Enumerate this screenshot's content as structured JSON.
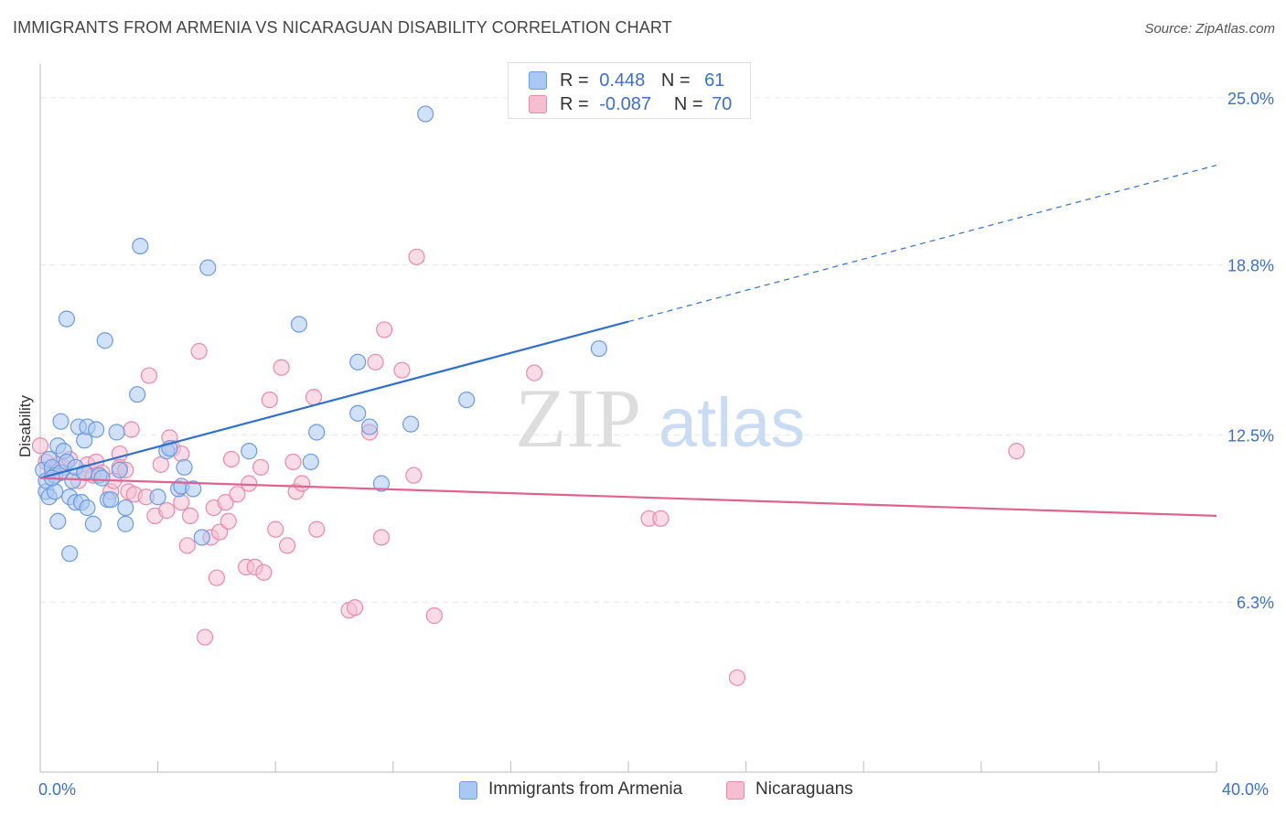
{
  "title": "IMMIGRANTS FROM ARMENIA VS NICARAGUAN DISABILITY CORRELATION CHART",
  "source": "Source: ZipAtlas.com",
  "watermark": {
    "zip": "ZIP",
    "atlas": "atlas"
  },
  "colors": {
    "blue_fill": "#a9c8f3",
    "blue_stroke": "#6d9be0",
    "blue_line": "#2f6fcf",
    "pink_fill": "#f6bfd1",
    "pink_stroke": "#e98aab",
    "pink_line": "#e0628f",
    "tick_label": "#3b6fd0",
    "grid": "#e6e6e6"
  },
  "legend_top": [
    {
      "r_label": "R =",
      "r_value": "0.448",
      "n_label": "N =",
      "n_value": "61"
    },
    {
      "r_label": "R =",
      "r_value": "-0.087",
      "n_label": "N =",
      "n_value": "70"
    }
  ],
  "chart_data": {
    "type": "scatter",
    "title": "IMMIGRANTS FROM ARMENIA VS NICARAGUAN DISABILITY CORRELATION CHART",
    "xlabel": "",
    "ylabel": "Disability",
    "xlim": [
      0,
      40
    ],
    "ylim": [
      0,
      26.25
    ],
    "x_tick_labels": [
      "0.0%",
      "40.0%"
    ],
    "y_ticks": [
      6.3,
      12.5,
      18.8,
      25.0
    ],
    "y_tick_labels": [
      "6.3%",
      "12.5%",
      "18.8%",
      "25.0%"
    ],
    "grid": true,
    "legend_position": "bottom",
    "series": [
      {
        "name": "Immigrants from Armenia",
        "color": "#a9c8f3",
        "trend": {
          "x": [
            0,
            20
          ],
          "y": [
            10.9,
            16.7
          ],
          "dashed_extension": {
            "x": [
              20,
              40
            ],
            "y": [
              16.7,
              22.5
            ]
          }
        },
        "points": [
          [
            0.1,
            11.2
          ],
          [
            0.2,
            10.4
          ],
          [
            0.2,
            10.8
          ],
          [
            0.3,
            10.2
          ],
          [
            0.3,
            11.6
          ],
          [
            0.4,
            11.3
          ],
          [
            0.5,
            11.0
          ],
          [
            0.5,
            10.4
          ],
          [
            0.6,
            9.3
          ],
          [
            0.6,
            12.1
          ],
          [
            0.7,
            11.1
          ],
          [
            0.7,
            13.0
          ],
          [
            0.8,
            11.9
          ],
          [
            0.9,
            11.5
          ],
          [
            0.9,
            16.8
          ],
          [
            1.0,
            8.1
          ],
          [
            1.0,
            10.2
          ],
          [
            1.1,
            10.8
          ],
          [
            1.2,
            11.3
          ],
          [
            1.2,
            10.0
          ],
          [
            1.3,
            12.8
          ],
          [
            1.4,
            10.0
          ],
          [
            1.5,
            12.3
          ],
          [
            1.5,
            11.1
          ],
          [
            1.6,
            12.8
          ],
          [
            1.6,
            9.8
          ],
          [
            1.8,
            9.2
          ],
          [
            1.9,
            12.7
          ],
          [
            2.0,
            11.0
          ],
          [
            2.1,
            10.9
          ],
          [
            2.2,
            16.0
          ],
          [
            2.3,
            10.1
          ],
          [
            2.4,
            10.1
          ],
          [
            2.6,
            12.6
          ],
          [
            2.7,
            11.2
          ],
          [
            2.9,
            9.2
          ],
          [
            2.9,
            9.8
          ],
          [
            3.3,
            14.0
          ],
          [
            3.4,
            19.5
          ],
          [
            4.0,
            10.2
          ],
          [
            4.3,
            11.9
          ],
          [
            4.4,
            12.0
          ],
          [
            4.7,
            10.5
          ],
          [
            4.8,
            10.6
          ],
          [
            4.9,
            11.3
          ],
          [
            5.2,
            10.5
          ],
          [
            5.5,
            8.7
          ],
          [
            5.7,
            18.7
          ],
          [
            7.1,
            11.9
          ],
          [
            8.8,
            16.6
          ],
          [
            9.2,
            11.5
          ],
          [
            9.4,
            12.6
          ],
          [
            10.8,
            15.2
          ],
          [
            10.8,
            13.3
          ],
          [
            11.2,
            12.8
          ],
          [
            11.6,
            10.7
          ],
          [
            12.6,
            12.9
          ],
          [
            13.1,
            24.4
          ],
          [
            14.5,
            13.8
          ],
          [
            19.0,
            15.7
          ],
          [
            0.4,
            10.9
          ]
        ]
      },
      {
        "name": "Nicaraguans",
        "color": "#f6bfd1",
        "trend": {
          "x": [
            0,
            40
          ],
          "y": [
            10.9,
            9.5
          ]
        },
        "points": [
          [
            0.0,
            12.1
          ],
          [
            0.2,
            11.5
          ],
          [
            0.4,
            11.2
          ],
          [
            0.6,
            11.4
          ],
          [
            0.8,
            11.3
          ],
          [
            1.0,
            11.6
          ],
          [
            1.3,
            10.8
          ],
          [
            1.5,
            11.1
          ],
          [
            1.6,
            11.4
          ],
          [
            1.8,
            11.0
          ],
          [
            1.9,
            11.5
          ],
          [
            2.1,
            11.1
          ],
          [
            2.4,
            10.4
          ],
          [
            2.5,
            10.8
          ],
          [
            2.7,
            11.8
          ],
          [
            2.7,
            11.3
          ],
          [
            2.9,
            11.2
          ],
          [
            3.0,
            10.4
          ],
          [
            3.1,
            12.7
          ],
          [
            3.2,
            10.3
          ],
          [
            3.6,
            10.2
          ],
          [
            3.7,
            14.7
          ],
          [
            3.9,
            9.5
          ],
          [
            4.1,
            11.4
          ],
          [
            4.3,
            9.7
          ],
          [
            4.4,
            12.4
          ],
          [
            4.5,
            12.0
          ],
          [
            4.8,
            11.8
          ],
          [
            4.8,
            10.0
          ],
          [
            5.0,
            8.4
          ],
          [
            5.1,
            9.5
          ],
          [
            5.4,
            15.6
          ],
          [
            5.6,
            5.0
          ],
          [
            5.8,
            8.7
          ],
          [
            5.9,
            9.8
          ],
          [
            6.0,
            7.2
          ],
          [
            6.1,
            8.9
          ],
          [
            6.3,
            10.0
          ],
          [
            6.4,
            9.3
          ],
          [
            6.5,
            11.6
          ],
          [
            6.7,
            10.3
          ],
          [
            7.0,
            7.6
          ],
          [
            7.1,
            10.7
          ],
          [
            7.3,
            7.6
          ],
          [
            7.5,
            11.3
          ],
          [
            7.6,
            7.4
          ],
          [
            7.8,
            13.8
          ],
          [
            8.0,
            9.0
          ],
          [
            8.2,
            15.0
          ],
          [
            8.4,
            8.4
          ],
          [
            8.6,
            11.5
          ],
          [
            8.7,
            10.4
          ],
          [
            8.9,
            10.7
          ],
          [
            9.3,
            13.9
          ],
          [
            9.4,
            9.0
          ],
          [
            10.5,
            6.0
          ],
          [
            10.7,
            6.1
          ],
          [
            11.2,
            12.6
          ],
          [
            11.4,
            15.2
          ],
          [
            11.6,
            8.7
          ],
          [
            11.7,
            16.4
          ],
          [
            12.3,
            14.9
          ],
          [
            12.7,
            11.0
          ],
          [
            12.8,
            19.1
          ],
          [
            13.4,
            5.8
          ],
          [
            16.8,
            14.8
          ],
          [
            20.7,
            9.4
          ],
          [
            21.1,
            9.4
          ],
          [
            23.7,
            3.5
          ],
          [
            33.2,
            11.9
          ]
        ]
      }
    ]
  }
}
